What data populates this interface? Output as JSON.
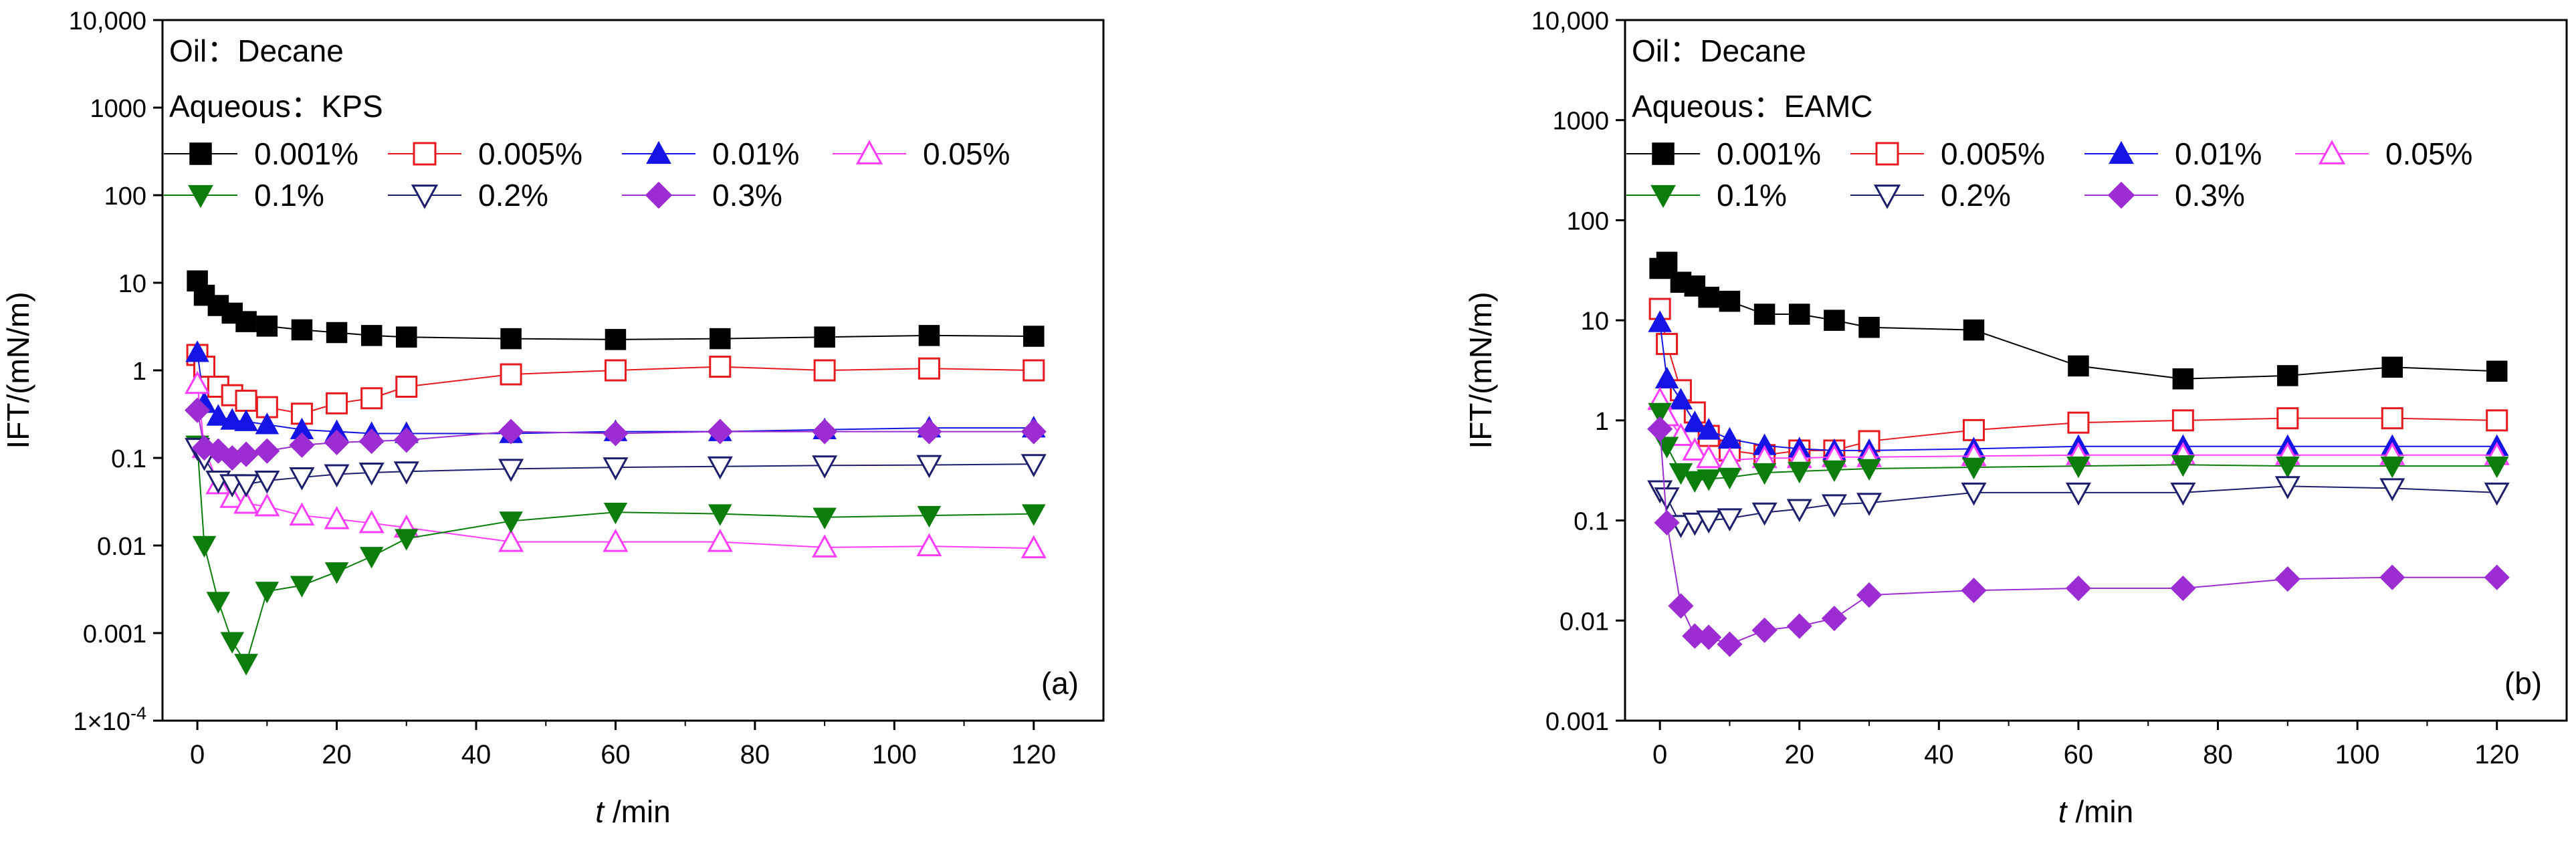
{
  "chart_data": [
    {
      "type": "line",
      "yscale": "log",
      "ylim": [
        0.0001,
        10000
      ],
      "xlim": [
        -5,
        130
      ],
      "xticks": [
        0,
        20,
        40,
        60,
        80,
        100,
        120
      ],
      "yticks": [
        0.0001,
        0.001,
        0.01,
        0.1,
        1,
        10,
        100,
        1000,
        10000
      ],
      "ytick_labels": [
        "1×10-4",
        "0.001",
        "0.01",
        "0.1",
        "1",
        "10",
        "100",
        "1000",
        "10,000"
      ],
      "xlabel_italic": "t",
      "xlabel_rest": " /min",
      "ylabel": "IFT/(mN/m)",
      "oil_label": "Oil：Decane",
      "aqueous_label": "Aqueous：KPS",
      "panel_label": "(a)",
      "series": [
        {
          "name": "0.001%",
          "marker": "square",
          "filled": true,
          "color": "#000000",
          "x": [
            0,
            1,
            3,
            5,
            7,
            10,
            15,
            20,
            25,
            30,
            45,
            60,
            75,
            90,
            105,
            120
          ],
          "y": [
            10.5,
            7.2,
            5.5,
            4.5,
            3.6,
            3.2,
            2.9,
            2.7,
            2.5,
            2.4,
            2.3,
            2.25,
            2.3,
            2.4,
            2.5,
            2.45
          ]
        },
        {
          "name": "0.005%",
          "marker": "square",
          "filled": false,
          "color": "#e8191e",
          "x": [
            0,
            1,
            3,
            5,
            7,
            10,
            15,
            20,
            25,
            30,
            45,
            60,
            75,
            90,
            105,
            120
          ],
          "y": [
            1.5,
            1.1,
            0.65,
            0.52,
            0.45,
            0.38,
            0.32,
            0.42,
            0.48,
            0.65,
            0.9,
            1.0,
            1.1,
            1.0,
            1.05,
            1.0
          ]
        },
        {
          "name": "0.01%",
          "marker": "triangle-up",
          "filled": true,
          "color": "#1414e6",
          "x": [
            0,
            1,
            3,
            5,
            7,
            10,
            15,
            20,
            25,
            30,
            45,
            60,
            75,
            90,
            105,
            120
          ],
          "y": [
            1.6,
            0.42,
            0.3,
            0.27,
            0.26,
            0.24,
            0.21,
            0.2,
            0.19,
            0.19,
            0.19,
            0.2,
            0.2,
            0.21,
            0.22,
            0.22
          ]
        },
        {
          "name": "0.05%",
          "marker": "triangle-up",
          "filled": false,
          "color": "#ff3cff",
          "x": [
            0,
            1,
            3,
            5,
            7,
            10,
            15,
            20,
            25,
            30,
            45,
            60,
            75,
            90,
            105,
            120
          ],
          "y": [
            0.7,
            0.13,
            0.05,
            0.035,
            0.03,
            0.028,
            0.022,
            0.02,
            0.018,
            0.016,
            0.011,
            0.011,
            0.011,
            0.0095,
            0.0098,
            0.0093
          ]
        },
        {
          "name": "0.1%",
          "marker": "triangle-down",
          "filled": true,
          "color": "#0a7d0a",
          "x": [
            0,
            1,
            3,
            5,
            7,
            10,
            15,
            20,
            25,
            30,
            45,
            60,
            75,
            90,
            105,
            120
          ],
          "y": [
            0.14,
            0.01,
            0.0023,
            0.0008,
            0.00045,
            0.003,
            0.0035,
            0.005,
            0.0075,
            0.012,
            0.019,
            0.024,
            0.023,
            0.021,
            0.022,
            0.023
          ]
        },
        {
          "name": "0.2%",
          "marker": "triangle-down",
          "filled": false,
          "color": "#1e1e6e",
          "x": [
            0,
            1,
            3,
            5,
            7,
            10,
            15,
            20,
            25,
            30,
            45,
            60,
            75,
            90,
            105,
            120
          ],
          "y": [
            0.13,
            0.1,
            0.055,
            0.05,
            0.05,
            0.055,
            0.06,
            0.065,
            0.068,
            0.07,
            0.075,
            0.078,
            0.08,
            0.082,
            0.083,
            0.085
          ]
        },
        {
          "name": "0.3%",
          "marker": "diamond",
          "filled": true,
          "color": "#9b2dd2",
          "x": [
            0,
            1,
            3,
            5,
            7,
            10,
            15,
            20,
            25,
            30,
            45,
            60,
            75,
            90,
            105,
            120
          ],
          "y": [
            0.35,
            0.13,
            0.12,
            0.1,
            0.11,
            0.12,
            0.14,
            0.15,
            0.155,
            0.16,
            0.2,
            0.19,
            0.2,
            0.2,
            0.2,
            0.2
          ]
        }
      ]
    },
    {
      "type": "line",
      "yscale": "log",
      "ylim": [
        0.001,
        10000
      ],
      "xlim": [
        -5,
        130
      ],
      "xticks": [
        0,
        20,
        40,
        60,
        80,
        100,
        120
      ],
      "yticks": [
        0.001,
        0.01,
        0.1,
        1,
        10,
        100,
        1000,
        10000
      ],
      "ytick_labels": [
        "0.001",
        "0.01",
        "0.1",
        "1",
        "10",
        "100",
        "1000",
        "10,000"
      ],
      "xlabel_italic": "t",
      "xlabel_rest": " /min",
      "ylabel": "IFT/(mN/m)",
      "oil_label": "Oil：Decane",
      "aqueous_label": "Aqueous：EAMC",
      "panel_label": "(b)",
      "series": [
        {
          "name": "0.001%",
          "marker": "square",
          "filled": true,
          "color": "#000000",
          "x": [
            0,
            1,
            3,
            5,
            7,
            10,
            15,
            20,
            25,
            30,
            45,
            60,
            75,
            90,
            105,
            120
          ],
          "y": [
            33,
            38,
            24,
            22,
            17,
            15.5,
            11.5,
            11.5,
            10,
            8.5,
            8,
            3.5,
            2.6,
            2.8,
            3.4,
            3.1
          ]
        },
        {
          "name": "0.005%",
          "marker": "square",
          "filled": false,
          "color": "#e8191e",
          "x": [
            0,
            1,
            3,
            5,
            7,
            10,
            15,
            20,
            25,
            30,
            45,
            60,
            75,
            90,
            105,
            120
          ],
          "y": [
            13,
            5.8,
            2.0,
            1.2,
            0.7,
            0.5,
            0.45,
            0.5,
            0.5,
            0.62,
            0.8,
            0.95,
            1.0,
            1.05,
            1.05,
            1.0
          ]
        },
        {
          "name": "0.01%",
          "marker": "triangle-up",
          "filled": true,
          "color": "#1414e6",
          "x": [
            0,
            1,
            3,
            5,
            7,
            10,
            15,
            20,
            25,
            30,
            45,
            60,
            75,
            90,
            105,
            120
          ],
          "y": [
            9.5,
            2.6,
            1.6,
            0.95,
            0.8,
            0.65,
            0.56,
            0.52,
            0.5,
            0.5,
            0.52,
            0.55,
            0.55,
            0.55,
            0.55,
            0.55
          ]
        },
        {
          "name": "0.05%",
          "marker": "triangle-up",
          "filled": false,
          "color": "#ff3cff",
          "x": [
            0,
            1,
            3,
            5,
            7,
            10,
            15,
            20,
            25,
            30,
            45,
            60,
            75,
            90,
            105,
            120
          ],
          "y": [
            1.6,
            1.1,
            0.7,
            0.5,
            0.42,
            0.4,
            0.42,
            0.42,
            0.43,
            0.43,
            0.44,
            0.45,
            0.45,
            0.45,
            0.45,
            0.45
          ]
        },
        {
          "name": "0.1%",
          "marker": "triangle-down",
          "filled": true,
          "color": "#0a7d0a",
          "x": [
            0,
            1,
            3,
            5,
            7,
            10,
            15,
            20,
            25,
            30,
            45,
            60,
            75,
            90,
            105,
            120
          ],
          "y": [
            1.2,
            0.55,
            0.3,
            0.25,
            0.26,
            0.27,
            0.3,
            0.31,
            0.32,
            0.33,
            0.34,
            0.35,
            0.36,
            0.35,
            0.35,
            0.35
          ]
        },
        {
          "name": "0.2%",
          "marker": "triangle-down",
          "filled": false,
          "color": "#1e1e6e",
          "x": [
            0,
            1,
            3,
            5,
            7,
            10,
            15,
            20,
            25,
            30,
            45,
            60,
            75,
            90,
            105,
            120
          ],
          "y": [
            0.2,
            0.17,
            0.09,
            0.095,
            0.1,
            0.105,
            0.12,
            0.13,
            0.145,
            0.15,
            0.19,
            0.19,
            0.19,
            0.22,
            0.21,
            0.19
          ]
        },
        {
          "name": "0.3%",
          "marker": "diamond",
          "filled": true,
          "color": "#9b2dd2",
          "x": [
            0,
            1,
            3,
            5,
            7,
            10,
            15,
            20,
            25,
            30,
            45,
            60,
            75,
            90,
            105,
            120
          ],
          "y": [
            0.82,
            0.095,
            0.014,
            0.007,
            0.0068,
            0.0058,
            0.008,
            0.0088,
            0.0105,
            0.018,
            0.02,
            0.021,
            0.021,
            0.026,
            0.027,
            0.027
          ]
        }
      ]
    }
  ]
}
